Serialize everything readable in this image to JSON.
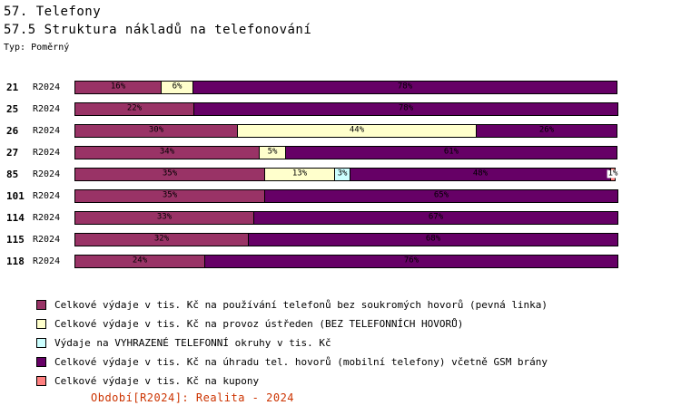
{
  "header": {
    "title": "57. Telefony",
    "subtitle": "57.5 Struktura nákladů na telefonování",
    "type_label": "Typ: Poměrný"
  },
  "footer": {
    "text": "Období[R2024]: Realita - 2024"
  },
  "colors": {
    "footer_text": "#cc3300",
    "segment_border": "#000000",
    "label_text": "#000000"
  },
  "chart_data": {
    "type": "bar",
    "orientation": "horizontal",
    "stacked": true,
    "proportional": true,
    "unit": "%",
    "xlim": [
      0,
      100
    ],
    "grid": false,
    "legend_position": "bottom-left",
    "period_label": "R2024",
    "categories": [
      "21",
      "25",
      "26",
      "27",
      "85",
      "101",
      "114",
      "115",
      "118"
    ],
    "series": [
      {
        "name": "Celkové výdaje v tis. Kč na používání telefonů bez soukromých hovorů (pevná linka)",
        "color": "#993366",
        "values": [
          16,
          22,
          30,
          34,
          35,
          35,
          33,
          32,
          24
        ]
      },
      {
        "name": "Celkové výdaje v tis. Kč na provoz ústředen (BEZ TELEFONNÍCH HOVORŮ)",
        "color": "#FFFFCC",
        "values": [
          6,
          0,
          44,
          5,
          13,
          0,
          0,
          0,
          0
        ]
      },
      {
        "name": "Výdaje na VYHRAZENÉ TELEFONNÍ okruhy v tis. Kč",
        "color": "#CCFFFF",
        "values": [
          0,
          0,
          0,
          0,
          3,
          0,
          0,
          0,
          0
        ]
      },
      {
        "name": "Celkové výdaje v tis. Kč na úhradu tel. hovorů (mobilní telefony) včetně GSM brány",
        "color": "#660066",
        "values": [
          78,
          78,
          26,
          61,
          48,
          65,
          67,
          68,
          76
        ]
      },
      {
        "name": "Celkové výdaje v tis. Kč na kupony",
        "color": "#FF8080",
        "values": [
          0,
          0,
          0,
          0,
          1,
          0,
          0,
          0,
          0
        ]
      }
    ]
  }
}
